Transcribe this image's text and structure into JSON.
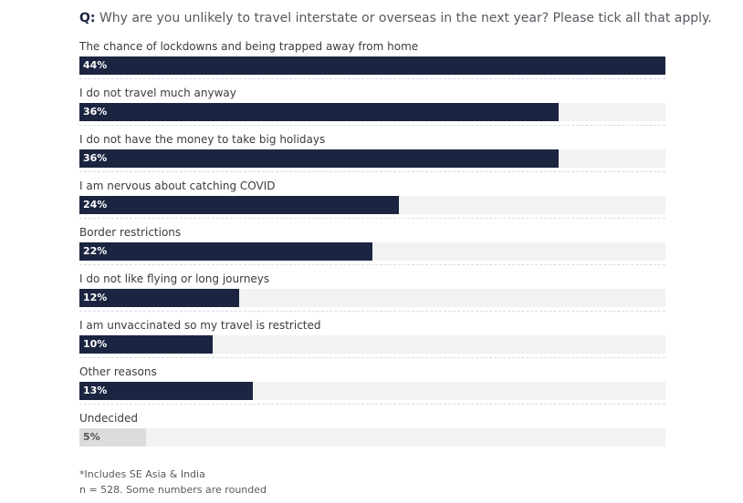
{
  "question": {
    "prefix": "Q:",
    "text": "Why are you unlikely to travel interstate or overseas in the next year? Please tick all that apply."
  },
  "chart_data": {
    "type": "bar",
    "orientation": "horizontal",
    "xlim": [
      0,
      44
    ],
    "categories": [
      "The chance of lockdowns and being trapped away from home",
      "I do not travel much anyway",
      "I do not have the money to take big holidays",
      "I am nervous about catching COVID",
      "Border restrictions",
      "I do not like flying or long journeys",
      "I am unvaccinated so my travel is restricted",
      "Other reasons",
      "Undecided"
    ],
    "values": [
      44,
      36,
      36,
      24,
      22,
      12,
      10,
      13,
      5
    ],
    "value_labels": [
      "44%",
      "36%",
      "36%",
      "24%",
      "22%",
      "12%",
      "10%",
      "13%",
      "5%"
    ],
    "bar_color": "#1b2541",
    "highlight_color": "#dcdcdc",
    "track_color": "#f2f2f2"
  },
  "notes": [
    "*Includes SE Asia & India",
    "n = 528. Some numbers are rounded"
  ]
}
